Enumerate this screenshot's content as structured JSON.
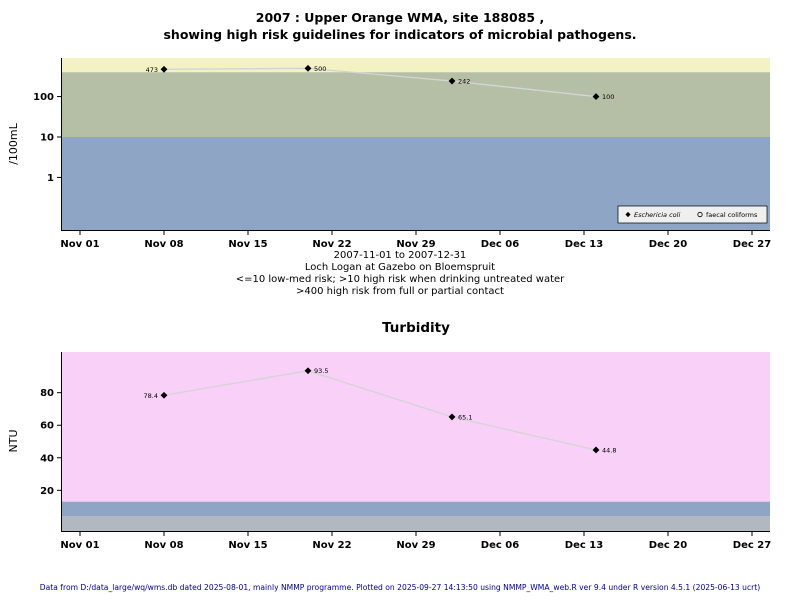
{
  "page": {
    "footer": "Data from D:/data_large/wq/wms.db dated 2025-08-01, mainly NMMP programme. Plotted on 2025-09-27 14:13:50 using NMMP_WMA_web.R ver 9.4 under R version 4.5.1 (2025-06-13 ucrt)",
    "footer_color": "#00008b",
    "background": "#ffffff"
  },
  "chart_data": [
    {
      "type": "line",
      "title": "2007 : Upper Orange WMA, site 188085 ,",
      "subtitle": "showing high risk guidelines for indicators of microbial pathogens.",
      "ylabel": "/100mL",
      "yscale": "log",
      "ylim": [
        0.05,
        900
      ],
      "yticks": [
        "1",
        "10",
        "100"
      ],
      "ytick_values": [
        1,
        10,
        100
      ],
      "xlim": [
        -1.5,
        57.5
      ],
      "xtick_values": [
        0,
        7,
        14,
        21,
        28,
        35,
        42,
        49,
        56
      ],
      "xtick_labels": [
        "Nov 01",
        "Nov 08",
        "Nov 15",
        "Nov 22",
        "Nov 29",
        "Dec 06",
        "Dec 13",
        "Dec 20",
        "Dec 27"
      ],
      "x_days": [
        7,
        19,
        31,
        43
      ],
      "series": [
        {
          "name": "Eschericia coli",
          "symbol": "diamond",
          "values": [
            473,
            500,
            242,
            100
          ],
          "labels": [
            "473",
            "500",
            "242",
            "100"
          ]
        }
      ],
      "line_color": "#d4d4d4",
      "point_color": "#000000",
      "bands": [
        {
          "from": 400,
          "to": "top",
          "color": "#f2f2c2"
        },
        {
          "from": 10,
          "to": 400,
          "color": "#b4bfa6"
        },
        {
          "from": "bottom",
          "to": 10,
          "color": "#8ea5c6"
        }
      ],
      "legend": {
        "items": [
          {
            "symbol": "diamond-filled",
            "label": "Eschericia coli",
            "italic": true
          },
          {
            "symbol": "circle-open",
            "label": "faecal coliforms",
            "italic": false
          }
        ]
      },
      "caption": [
        "2007-11-01 to 2007-12-31",
        "Loch Logan at Gazebo on Bloemspruit",
        "<=10 low-med risk; >10 high risk when drinking untreated water",
        ">400 high risk from full or partial contact"
      ]
    },
    {
      "type": "line",
      "title": "Turbidity",
      "ylabel": "NTU",
      "yscale": "linear",
      "ylim": [
        -5,
        105
      ],
      "yticks": [
        "20",
        "40",
        "60",
        "80"
      ],
      "ytick_values": [
        20,
        40,
        60,
        80
      ],
      "xlim": [
        -1.5,
        57.5
      ],
      "xtick_values": [
        0,
        7,
        14,
        21,
        28,
        35,
        42,
        49,
        56
      ],
      "xtick_labels": [
        "Nov 01",
        "Nov 08",
        "Nov 15",
        "Nov 22",
        "Nov 29",
        "Dec 06",
        "Dec 13",
        "Dec 20",
        "Dec 27"
      ],
      "x_days": [
        7,
        19,
        31,
        43
      ],
      "series": [
        {
          "name": "Turbidity",
          "symbol": "diamond",
          "values": [
            78.4,
            93.5,
            65.1,
            44.8
          ],
          "labels": [
            "78.4",
            "93.5",
            "65.1",
            "44.8"
          ]
        }
      ],
      "line_color": "#d4d4d4",
      "point_color": "#000000",
      "bands": [
        {
          "from": 13,
          "to": "top",
          "color": "#f8d0f8"
        },
        {
          "from": 4,
          "to": 13,
          "color": "#8ea5c6"
        },
        {
          "from": "bottom",
          "to": 4,
          "color": "#b2b8bf"
        }
      ]
    }
  ]
}
